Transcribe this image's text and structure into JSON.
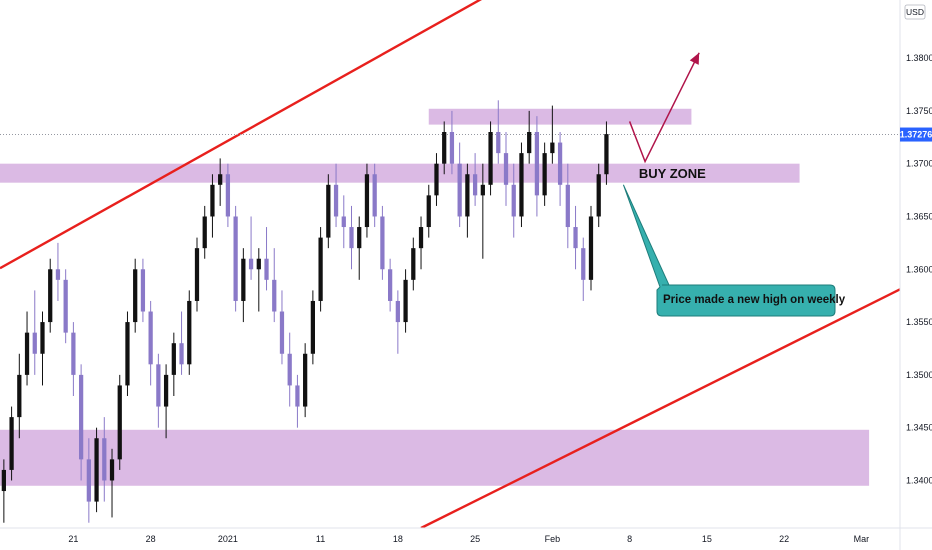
{
  "chart_data": {
    "type": "candlestick",
    "currency": "USD",
    "last_price": "1.37276",
    "ylim": [
      1.3355,
      1.3855
    ],
    "y_ticks": [
      "1.38000",
      "1.37500",
      "1.37000",
      "1.36500",
      "1.36000",
      "1.35500",
      "1.35000",
      "1.34500",
      "1.34000"
    ],
    "y_tick_values": [
      1.38,
      1.375,
      1.37,
      1.365,
      1.36,
      1.355,
      1.35,
      1.345,
      1.34
    ],
    "x_ticks": [
      "21",
      "28",
      "2021",
      "11",
      "18",
      "25",
      "Feb",
      "8",
      "15",
      "22",
      "Mar"
    ],
    "x_tick_bars": [
      10,
      20,
      30,
      42,
      52,
      62,
      72,
      82,
      92,
      102,
      112
    ],
    "xlim": [
      0.5,
      117
    ],
    "buy_zone_label": "BUY ZONE",
    "callout_text": "Price made a new high on weekly",
    "zones": [
      {
        "name": "resistance-zone",
        "x_from": 56,
        "x_to": 90,
        "low": 1.3737,
        "high": 1.3752
      },
      {
        "name": "buy-zone",
        "x_from": 0.5,
        "x_to": 104,
        "low": 1.3682,
        "high": 1.37
      },
      {
        "name": "demand-zone",
        "x_from": 0.5,
        "x_to": 113,
        "low": 1.3395,
        "high": 1.3448
      }
    ],
    "trend_lines": [
      {
        "name": "upper-channel-line",
        "from": [
          0.5,
          1.3601
        ],
        "to": [
          66,
          1.3869
        ]
      },
      {
        "name": "lower-channel-line",
        "from": [
          55,
          1.3355
        ],
        "to": [
          117,
          1.3581
        ]
      }
    ],
    "projection_arrow": {
      "points": [
        [
          82,
          1.374
        ],
        [
          84,
          1.3702
        ],
        [
          91,
          1.3805
        ]
      ]
    },
    "candles": [
      {
        "o": 1.339,
        "h": 1.342,
        "l": 1.336,
        "c": 1.341
      },
      {
        "o": 1.341,
        "h": 1.347,
        "l": 1.34,
        "c": 1.346
      },
      {
        "o": 1.346,
        "h": 1.352,
        "l": 1.344,
        "c": 1.35
      },
      {
        "o": 1.35,
        "h": 1.356,
        "l": 1.349,
        "c": 1.354
      },
      {
        "o": 1.354,
        "h": 1.358,
        "l": 1.35,
        "c": 1.352
      },
      {
        "o": 1.352,
        "h": 1.356,
        "l": 1.349,
        "c": 1.355
      },
      {
        "o": 1.355,
        "h": 1.361,
        "l": 1.354,
        "c": 1.36
      },
      {
        "o": 1.36,
        "h": 1.3625,
        "l": 1.357,
        "c": 1.359
      },
      {
        "o": 1.359,
        "h": 1.36,
        "l": 1.353,
        "c": 1.354
      },
      {
        "o": 1.354,
        "h": 1.355,
        "l": 1.348,
        "c": 1.35
      },
      {
        "o": 1.35,
        "h": 1.351,
        "l": 1.34,
        "c": 1.342
      },
      {
        "o": 1.342,
        "h": 1.344,
        "l": 1.336,
        "c": 1.338
      },
      {
        "o": 1.338,
        "h": 1.345,
        "l": 1.337,
        "c": 1.344
      },
      {
        "o": 1.344,
        "h": 1.346,
        "l": 1.338,
        "c": 1.34
      },
      {
        "o": 1.34,
        "h": 1.343,
        "l": 1.3365,
        "c": 1.342
      },
      {
        "o": 1.342,
        "h": 1.35,
        "l": 1.341,
        "c": 1.349
      },
      {
        "o": 1.349,
        "h": 1.356,
        "l": 1.348,
        "c": 1.355
      },
      {
        "o": 1.355,
        "h": 1.361,
        "l": 1.354,
        "c": 1.36
      },
      {
        "o": 1.36,
        "h": 1.361,
        "l": 1.355,
        "c": 1.356
      },
      {
        "o": 1.356,
        "h": 1.357,
        "l": 1.349,
        "c": 1.351
      },
      {
        "o": 1.351,
        "h": 1.352,
        "l": 1.345,
        "c": 1.347
      },
      {
        "o": 1.347,
        "h": 1.351,
        "l": 1.344,
        "c": 1.35
      },
      {
        "o": 1.35,
        "h": 1.354,
        "l": 1.348,
        "c": 1.353
      },
      {
        "o": 1.353,
        "h": 1.356,
        "l": 1.35,
        "c": 1.351
      },
      {
        "o": 1.351,
        "h": 1.358,
        "l": 1.35,
        "c": 1.357
      },
      {
        "o": 1.357,
        "h": 1.363,
        "l": 1.356,
        "c": 1.362
      },
      {
        "o": 1.362,
        "h": 1.366,
        "l": 1.361,
        "c": 1.365
      },
      {
        "o": 1.365,
        "h": 1.369,
        "l": 1.363,
        "c": 1.368
      },
      {
        "o": 1.368,
        "h": 1.3705,
        "l": 1.366,
        "c": 1.369
      },
      {
        "o": 1.369,
        "h": 1.37,
        "l": 1.364,
        "c": 1.365
      },
      {
        "o": 1.365,
        "h": 1.366,
        "l": 1.356,
        "c": 1.357
      },
      {
        "o": 1.357,
        "h": 1.362,
        "l": 1.355,
        "c": 1.361
      },
      {
        "o": 1.361,
        "h": 1.365,
        "l": 1.359,
        "c": 1.36
      },
      {
        "o": 1.36,
        "h": 1.362,
        "l": 1.356,
        "c": 1.361
      },
      {
        "o": 1.361,
        "h": 1.364,
        "l": 1.358,
        "c": 1.359
      },
      {
        "o": 1.359,
        "h": 1.362,
        "l": 1.355,
        "c": 1.356
      },
      {
        "o": 1.356,
        "h": 1.358,
        "l": 1.351,
        "c": 1.352
      },
      {
        "o": 1.352,
        "h": 1.354,
        "l": 1.347,
        "c": 1.349
      },
      {
        "o": 1.349,
        "h": 1.35,
        "l": 1.345,
        "c": 1.347
      },
      {
        "o": 1.347,
        "h": 1.353,
        "l": 1.346,
        "c": 1.352
      },
      {
        "o": 1.352,
        "h": 1.358,
        "l": 1.351,
        "c": 1.357
      },
      {
        "o": 1.357,
        "h": 1.364,
        "l": 1.356,
        "c": 1.363
      },
      {
        "o": 1.363,
        "h": 1.369,
        "l": 1.362,
        "c": 1.368
      },
      {
        "o": 1.368,
        "h": 1.37,
        "l": 1.364,
        "c": 1.365
      },
      {
        "o": 1.365,
        "h": 1.367,
        "l": 1.362,
        "c": 1.364
      },
      {
        "o": 1.364,
        "h": 1.366,
        "l": 1.36,
        "c": 1.362
      },
      {
        "o": 1.362,
        "h": 1.365,
        "l": 1.359,
        "c": 1.364
      },
      {
        "o": 1.364,
        "h": 1.37,
        "l": 1.363,
        "c": 1.369
      },
      {
        "o": 1.369,
        "h": 1.37,
        "l": 1.364,
        "c": 1.365
      },
      {
        "o": 1.365,
        "h": 1.366,
        "l": 1.359,
        "c": 1.36
      },
      {
        "o": 1.36,
        "h": 1.361,
        "l": 1.356,
        "c": 1.357
      },
      {
        "o": 1.357,
        "h": 1.358,
        "l": 1.352,
        "c": 1.355
      },
      {
        "o": 1.355,
        "h": 1.36,
        "l": 1.354,
        "c": 1.359
      },
      {
        "o": 1.359,
        "h": 1.363,
        "l": 1.358,
        "c": 1.362
      },
      {
        "o": 1.362,
        "h": 1.365,
        "l": 1.36,
        "c": 1.364
      },
      {
        "o": 1.364,
        "h": 1.368,
        "l": 1.363,
        "c": 1.367
      },
      {
        "o": 1.367,
        "h": 1.371,
        "l": 1.366,
        "c": 1.37
      },
      {
        "o": 1.37,
        "h": 1.374,
        "l": 1.369,
        "c": 1.373
      },
      {
        "o": 1.373,
        "h": 1.375,
        "l": 1.369,
        "c": 1.37
      },
      {
        "o": 1.37,
        "h": 1.372,
        "l": 1.364,
        "c": 1.365
      },
      {
        "o": 1.365,
        "h": 1.37,
        "l": 1.363,
        "c": 1.369
      },
      {
        "o": 1.369,
        "h": 1.371,
        "l": 1.366,
        "c": 1.367
      },
      {
        "o": 1.367,
        "h": 1.37,
        "l": 1.361,
        "c": 1.368
      },
      {
        "o": 1.368,
        "h": 1.374,
        "l": 1.367,
        "c": 1.373
      },
      {
        "o": 1.373,
        "h": 1.376,
        "l": 1.37,
        "c": 1.371
      },
      {
        "o": 1.371,
        "h": 1.373,
        "l": 1.366,
        "c": 1.368
      },
      {
        "o": 1.368,
        "h": 1.37,
        "l": 1.363,
        "c": 1.365
      },
      {
        "o": 1.365,
        "h": 1.372,
        "l": 1.364,
        "c": 1.371
      },
      {
        "o": 1.371,
        "h": 1.375,
        "l": 1.37,
        "c": 1.373
      },
      {
        "o": 1.373,
        "h": 1.3745,
        "l": 1.365,
        "c": 1.367
      },
      {
        "o": 1.367,
        "h": 1.372,
        "l": 1.366,
        "c": 1.371
      },
      {
        "o": 1.371,
        "h": 1.3755,
        "l": 1.37,
        "c": 1.372
      },
      {
        "o": 1.372,
        "h": 1.373,
        "l": 1.366,
        "c": 1.368
      },
      {
        "o": 1.368,
        "h": 1.37,
        "l": 1.362,
        "c": 1.364
      },
      {
        "o": 1.364,
        "h": 1.366,
        "l": 1.36,
        "c": 1.362
      },
      {
        "o": 1.362,
        "h": 1.363,
        "l": 1.357,
        "c": 1.359
      },
      {
        "o": 1.359,
        "h": 1.366,
        "l": 1.358,
        "c": 1.365
      },
      {
        "o": 1.365,
        "h": 1.37,
        "l": 1.364,
        "c": 1.369
      },
      {
        "o": 1.369,
        "h": 1.374,
        "l": 1.368,
        "c": 1.3728
      }
    ]
  }
}
